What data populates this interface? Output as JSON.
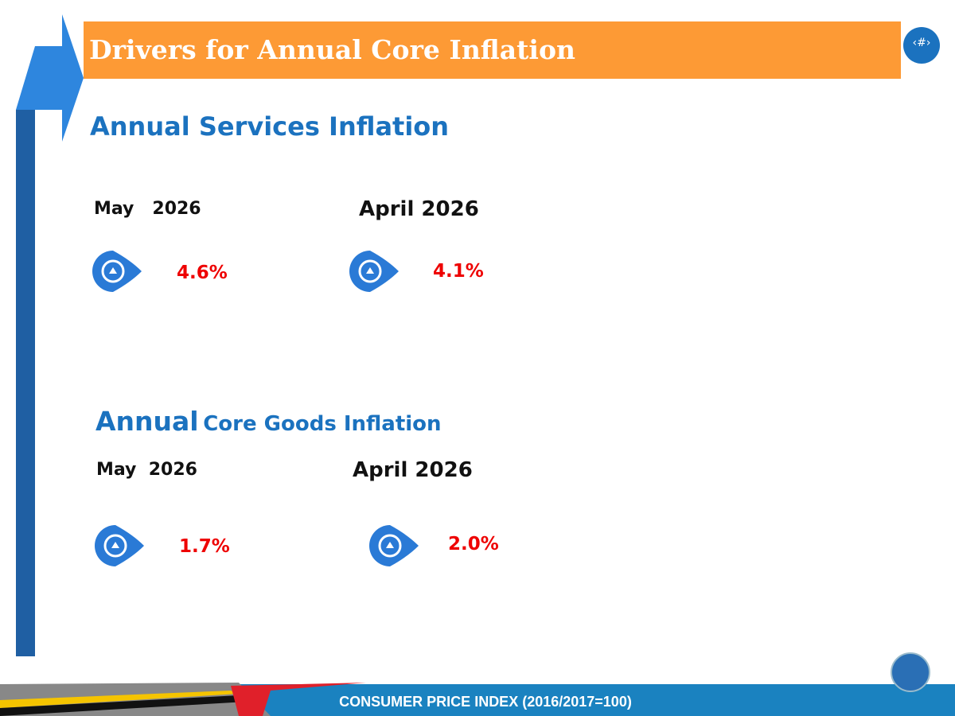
{
  "header": {
    "title": "Drivers for Annual Core Inflation",
    "slide_number": "‹#›"
  },
  "sections": [
    {
      "title": [
        "Annual Services Inflation"
      ],
      "items": [
        {
          "period": "May   2026",
          "value": "4.6%"
        },
        {
          "period": "April 2026",
          "value": "4.1%"
        }
      ]
    },
    {
      "title": [
        "Annual",
        "Core Goods Inflation"
      ],
      "items": [
        {
          "period": "May  2026",
          "value": "1.7%"
        },
        {
          "period": "April 2026",
          "value": "2.0%"
        }
      ]
    }
  ],
  "footer": {
    "text": "CONSUMER PRICE INDEX (2016/2017=100)"
  }
}
